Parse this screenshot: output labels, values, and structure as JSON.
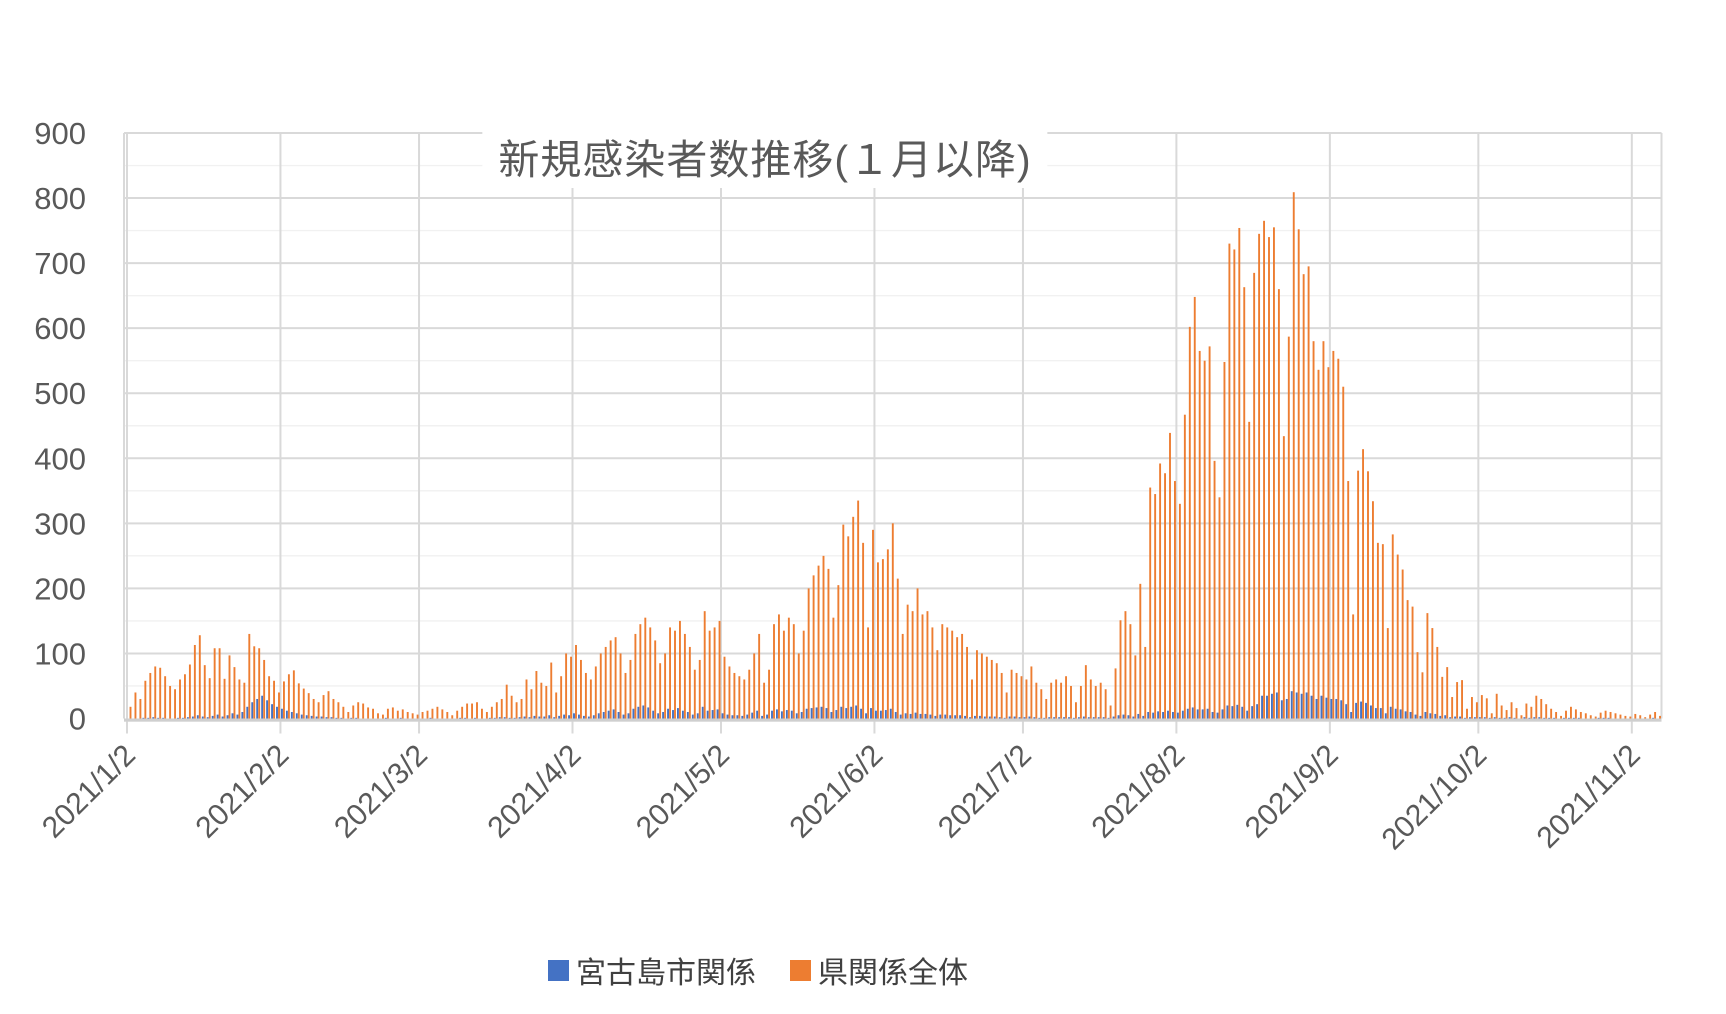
{
  "chart": {
    "title": "新規感染者数推移(１月以降)"
  },
  "chart_data": {
    "type": "bar",
    "title": "新規感染者数推移(１月以降)",
    "xlabel": "",
    "ylabel": "",
    "ylim": [
      0,
      900
    ],
    "y_major_ticks": [
      0,
      100,
      200,
      300,
      400,
      500,
      600,
      700,
      800,
      900
    ],
    "y_minor_step": 50,
    "grid": {
      "horizontal_major": true,
      "horizontal_minor": true,
      "vertical_monthly": true
    },
    "legend_position": "bottom",
    "x_start": "2021/1/2",
    "x_tick_labels": [
      "2021/1/2",
      "2021/2/2",
      "2021/3/2",
      "2021/4/2",
      "2021/5/2",
      "2021/6/2",
      "2021/7/2",
      "2021/8/2",
      "2021/9/2",
      "2021/10/2",
      "2021/11/2"
    ],
    "x_tick_day_indices": [
      0,
      31,
      59,
      90,
      120,
      151,
      181,
      212,
      243,
      273,
      304
    ],
    "colors": {
      "series_miyakojima": "#4472C4",
      "series_prefecture": "#ED7D31",
      "gridline_major": "#D9D9D9",
      "gridline_minor": "#F1F1F1",
      "axis_line": "#CFCFCF",
      "axis_text": "#595959"
    },
    "series": [
      {
        "name": "宮古島市関係",
        "color": "#4472C4",
        "values": [
          0,
          0,
          0,
          1,
          1,
          2,
          1,
          1,
          0,
          0,
          1,
          1,
          2,
          3,
          5,
          3,
          2,
          4,
          6,
          3,
          5,
          8,
          6,
          10,
          18,
          25,
          30,
          35,
          28,
          22,
          18,
          15,
          12,
          10,
          8,
          6,
          5,
          4,
          3,
          3,
          2,
          2,
          1,
          1,
          0,
          1,
          1,
          0,
          0,
          0,
          0,
          0,
          1,
          0,
          0,
          1,
          0,
          0,
          0,
          0,
          0,
          1,
          0,
          0,
          0,
          0,
          0,
          1,
          1,
          0,
          1,
          0,
          0,
          1,
          1,
          2,
          2,
          1,
          1,
          2,
          3,
          2,
          4,
          3,
          3,
          5,
          2,
          4,
          6,
          5,
          8,
          6,
          4,
          3,
          5,
          8,
          10,
          12,
          14,
          10,
          6,
          8,
          15,
          18,
          20,
          17,
          12,
          8,
          10,
          15,
          13,
          16,
          12,
          10,
          6,
          8,
          18,
          12,
          13,
          14,
          8,
          6,
          5,
          5,
          4,
          6,
          9,
          12,
          4,
          6,
          12,
          14,
          11,
          13,
          12,
          8,
          10,
          15,
          16,
          17,
          18,
          16,
          10,
          13,
          18,
          16,
          18,
          20,
          15,
          8,
          16,
          12,
          12,
          13,
          15,
          10,
          6,
          8,
          7,
          9,
          7,
          7,
          6,
          4,
          6,
          6,
          5,
          5,
          5,
          4,
          2,
          4,
          4,
          3,
          3,
          3,
          2,
          1,
          3,
          3,
          2,
          2,
          3,
          2,
          1,
          1,
          2,
          2,
          2,
          2,
          2,
          1,
          2,
          3,
          2,
          2,
          2,
          2,
          1,
          3,
          5,
          6,
          5,
          3,
          7,
          4,
          10,
          9,
          11,
          10,
          12,
          10,
          9,
          12,
          15,
          17,
          14,
          14,
          15,
          10,
          9,
          14,
          20,
          19,
          21,
          18,
          12,
          19,
          22,
          35,
          35,
          38,
          40,
          28,
          30,
          42,
          40,
          38,
          40,
          35,
          30,
          35,
          32,
          30,
          30,
          28,
          22,
          10,
          24,
          26,
          24,
          20,
          16,
          16,
          8,
          18,
          15,
          14,
          11,
          10,
          6,
          4,
          10,
          8,
          7,
          4,
          5,
          2,
          3,
          3,
          1,
          2,
          2,
          2,
          2,
          1,
          2,
          1,
          1,
          2,
          1,
          0,
          2,
          1,
          2,
          2,
          1,
          1,
          1,
          0,
          1,
          1,
          1,
          1,
          0,
          0,
          0,
          1,
          1,
          1,
          0,
          0,
          0,
          0,
          0,
          0,
          0,
          0,
          1,
          0
        ]
      },
      {
        "name": "県関係全体",
        "color": "#ED7D31",
        "values": [
          18,
          40,
          30,
          58,
          70,
          80,
          78,
          65,
          50,
          45,
          60,
          68,
          83,
          113,
          128,
          82,
          62,
          108,
          108,
          61,
          97,
          79,
          60,
          55,
          130,
          111,
          108,
          90,
          65,
          58,
          40,
          57,
          68,
          74,
          54,
          46,
          39,
          30,
          25,
          36,
          42,
          30,
          25,
          18,
          10,
          20,
          25,
          23,
          17,
          15,
          8,
          6,
          15,
          17,
          12,
          14,
          10,
          8,
          6,
          10,
          12,
          15,
          18,
          14,
          10,
          5,
          12,
          18,
          23,
          23,
          25,
          15,
          10,
          18,
          25,
          30,
          52,
          35,
          25,
          30,
          60,
          45,
          73,
          55,
          50,
          86,
          40,
          65,
          100,
          95,
          113,
          90,
          70,
          60,
          80,
          100,
          110,
          120,
          125,
          100,
          70,
          90,
          130,
          145,
          155,
          140,
          120,
          85,
          100,
          140,
          135,
          150,
          130,
          110,
          75,
          90,
          165,
          135,
          140,
          150,
          95,
          80,
          70,
          65,
          60,
          75,
          100,
          130,
          55,
          75,
          145,
          160,
          135,
          155,
          145,
          100,
          135,
          200,
          220,
          235,
          250,
          230,
          155,
          205,
          298,
          280,
          310,
          335,
          270,
          140,
          290,
          240,
          245,
          260,
          300,
          215,
          130,
          175,
          165,
          200,
          160,
          165,
          140,
          105,
          145,
          140,
          135,
          125,
          130,
          110,
          60,
          105,
          100,
          95,
          90,
          85,
          70,
          40,
          75,
          70,
          65,
          60,
          80,
          55,
          45,
          30,
          55,
          60,
          55,
          65,
          50,
          25,
          50,
          82,
          60,
          50,
          55,
          45,
          20,
          77,
          151,
          165,
          145,
          97,
          207,
          110,
          355,
          345,
          392,
          377,
          439,
          365,
          330,
          467,
          602,
          648,
          565,
          550,
          572,
          396,
          340,
          548,
          730,
          721,
          754,
          663,
          456,
          685,
          745,
          765,
          740,
          755,
          660,
          434,
          587,
          809,
          752,
          683,
          695,
          580,
          536,
          580,
          540,
          565,
          553,
          510,
          365,
          160,
          381,
          414,
          380,
          334,
          270,
          268,
          139,
          283,
          252,
          229,
          182,
          172,
          102,
          71,
          162,
          139,
          110,
          64,
          79,
          33,
          56,
          59,
          15,
          33,
          25,
          36,
          31,
          8,
          38,
          20,
          13,
          25,
          16,
          5,
          23,
          18,
          35,
          30,
          22,
          15,
          10,
          4,
          12,
          18,
          14,
          10,
          8,
          5,
          3,
          9,
          12,
          10,
          8,
          6,
          4,
          3,
          7,
          5,
          2,
          6,
          10,
          4
        ]
      }
    ]
  }
}
